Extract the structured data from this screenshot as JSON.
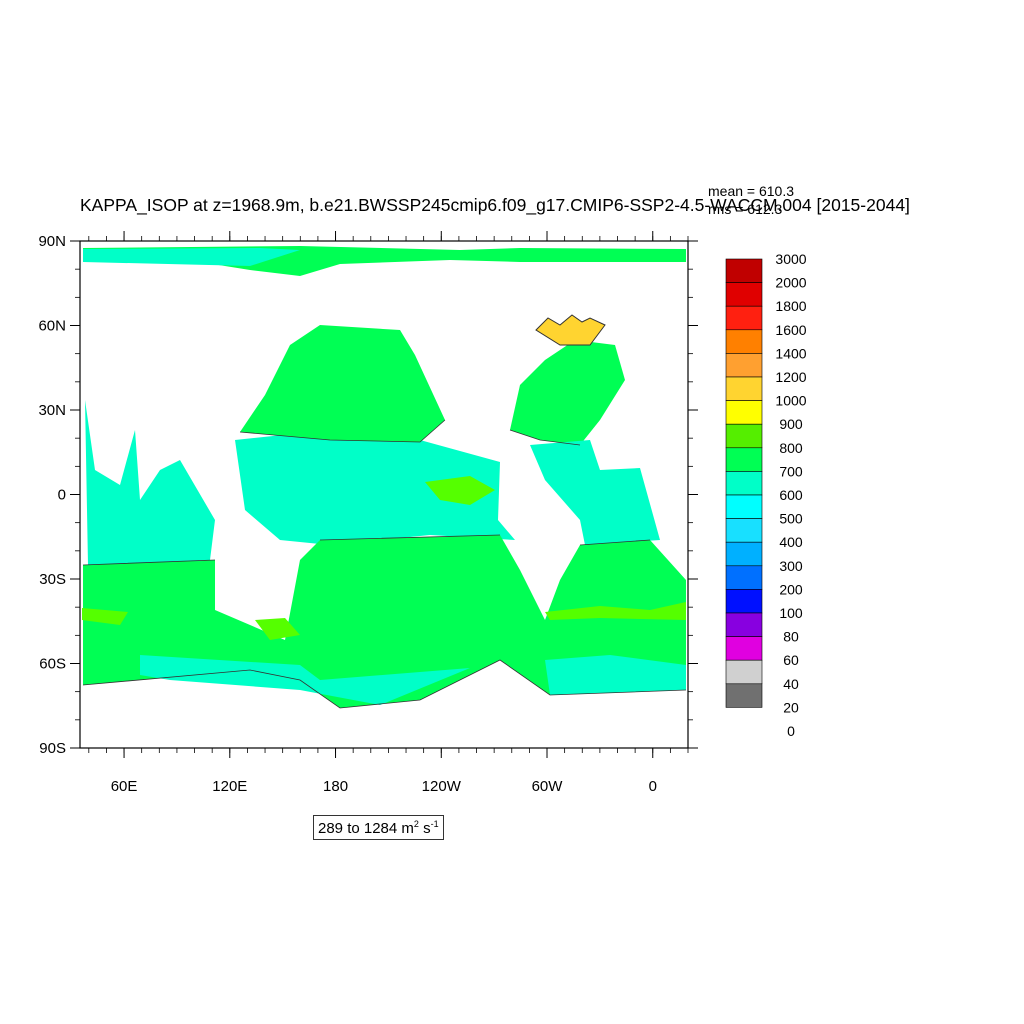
{
  "map": {
    "title": "KAPPA_ISOP at z=1968.9m, b.e21.BWSSP245cmip6.f09_g17.CMIP6-SSP2-4.5-WACCM.004 [2015-2044]",
    "stats": {
      "mean": "mean = 610.3",
      "rms": "rms = 612.3"
    },
    "range": {
      "text": "289 to 1284 m",
      "sup1": "2",
      "mid": " s",
      "sup2": "-1"
    },
    "lat_labels": [
      "90N",
      "60N",
      "30N",
      "0",
      "30S",
      "60S",
      "90S"
    ],
    "lon_labels": [
      "60E",
      "120E",
      "180",
      "120W",
      "60W",
      "0"
    ],
    "lon_values": [
      60,
      120,
      180,
      240,
      300,
      360
    ],
    "lat_values": [
      90,
      60,
      30,
      0,
      -30,
      -60,
      -90
    ],
    "lon_range": [
      35,
      380
    ],
    "colors": {
      "ocean_main": "#00ff54",
      "ocean_band": "#00ffc8",
      "ocean_light": "#55ff00",
      "land": "#ffffff",
      "contour": "#333333"
    }
  },
  "legend": {
    "labels": [
      "3000",
      "2000",
      "1800",
      "1600",
      "1400",
      "1200",
      "1000",
      "900",
      "800",
      "700",
      "600",
      "500",
      "400",
      "300",
      "200",
      "100",
      "80",
      "60",
      "40",
      "20",
      "0"
    ],
    "colors": [
      "#c00000",
      "#e00000",
      "#ff2010",
      "#ff8000",
      "#ffa030",
      "#ffd430",
      "#ffff00",
      "#55ee00",
      "#00ff54",
      "#00ffc8",
      "#00ffff",
      "#18e0ff",
      "#00b0ff",
      "#0070ff",
      "#0010ff",
      "#8800e0",
      "#e000e0",
      "#d0d0d0",
      "#707070"
    ]
  }
}
